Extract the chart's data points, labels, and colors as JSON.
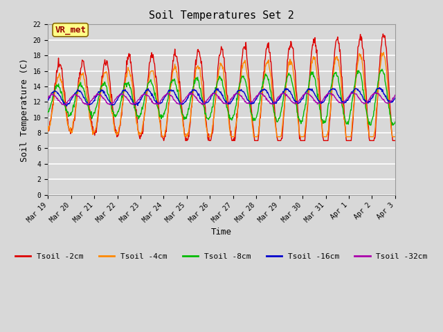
{
  "title": "Soil Temperatures Set 2",
  "xlabel": "Time",
  "ylabel": "Soil Temperature (C)",
  "ylim": [
    0,
    22
  ],
  "yticks": [
    0,
    2,
    4,
    6,
    8,
    10,
    12,
    14,
    16,
    18,
    20,
    22
  ],
  "series_colors": [
    "#dd0000",
    "#ff8800",
    "#00bb00",
    "#0000cc",
    "#aa00aa"
  ],
  "series_labels": [
    "Tsoil -2cm",
    "Tsoil -4cm",
    "Tsoil -8cm",
    "Tsoil -16cm",
    "Tsoil -32cm"
  ],
  "annotation_text": "VR_met",
  "annotation_bbox_facecolor": "#ffff88",
  "annotation_bbox_edgecolor": "#886600",
  "background_color": "#d8d8d8",
  "plot_bg_color": "#d8d8d8",
  "grid_color": "#ffffff",
  "title_fontsize": 11,
  "axis_label_fontsize": 9,
  "tick_label_fontsize": 7,
  "legend_fontsize": 8,
  "line_width": 1.0,
  "x_labels": [
    "Mar 19",
    "Mar 20",
    "Mar 21",
    "Mar 22",
    "Mar 23",
    "Mar 24",
    "Mar 25",
    "Mar 26",
    "Mar 27",
    "Mar 28",
    "Mar 29",
    "Mar 30",
    "Mar 31",
    "Apr 1",
    "Apr 2",
    "Apr 3"
  ]
}
